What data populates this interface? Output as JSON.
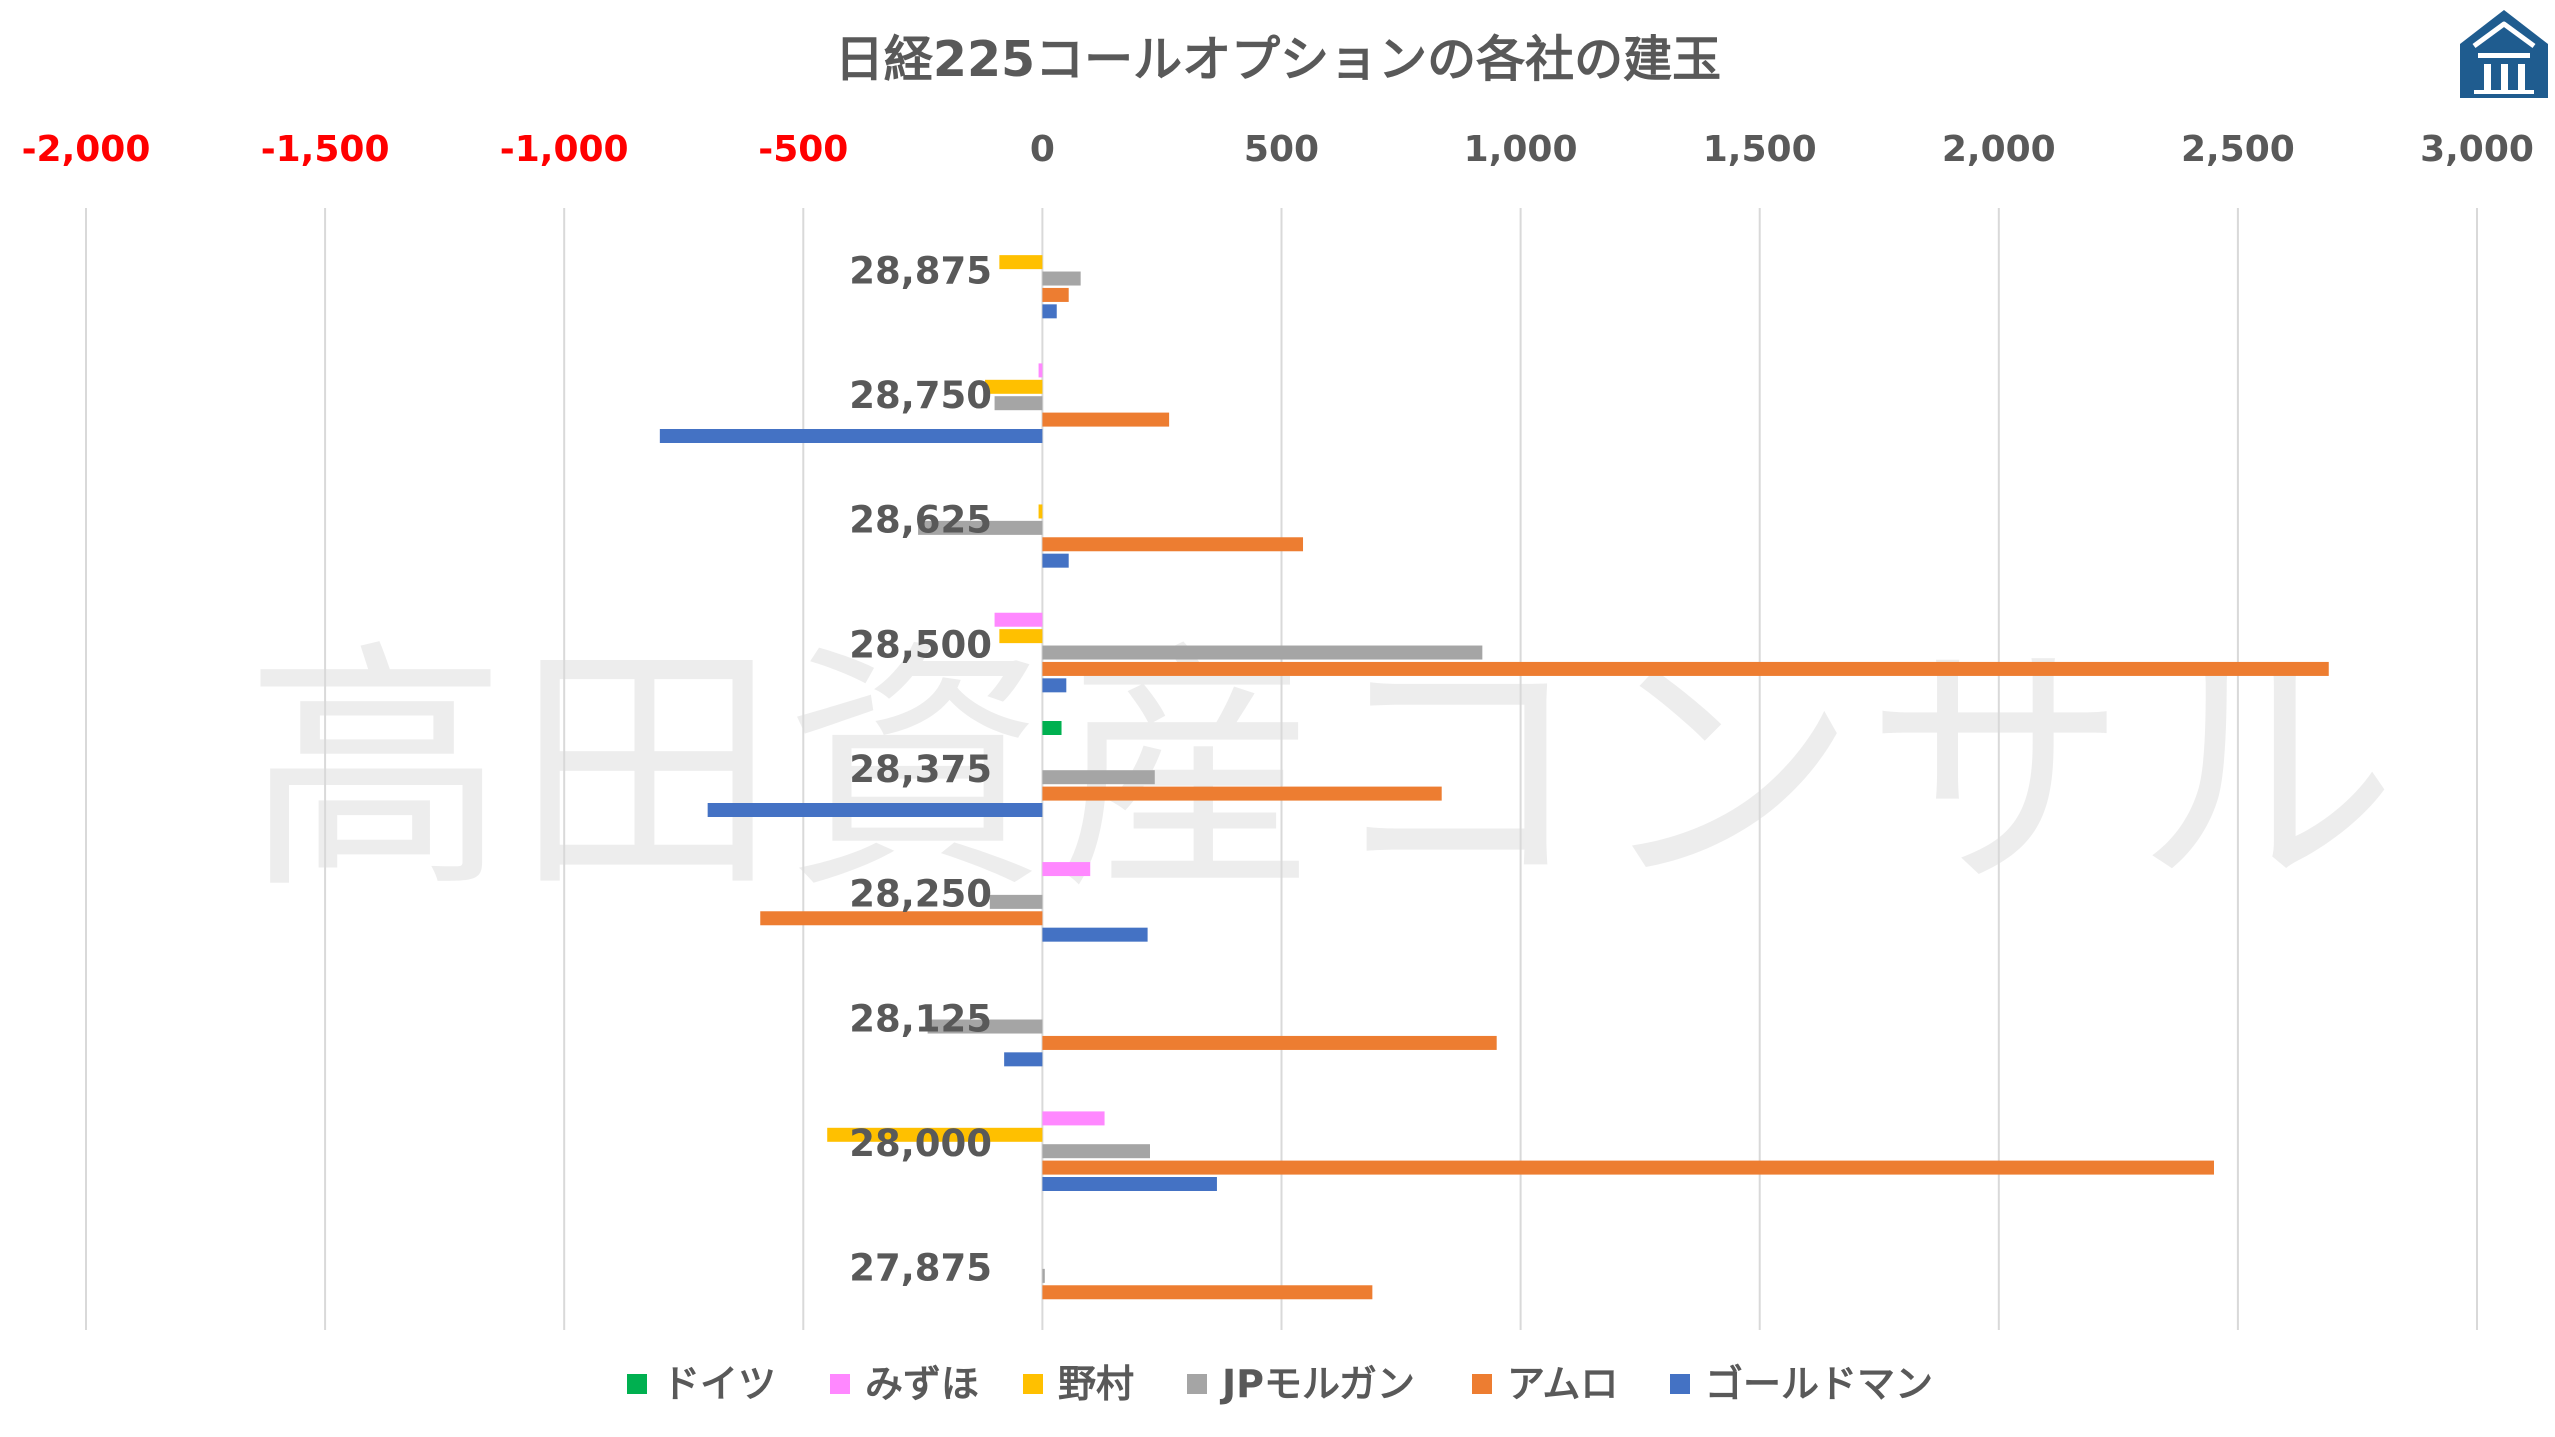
{
  "chart_data": {
    "type": "bar",
    "orientation": "horizontal",
    "title": "日経225コールオプションの各社の建玉",
    "xlim": [
      -2000,
      3000
    ],
    "x_ticks": [
      {
        "value": -2000,
        "label": "-2,000"
      },
      {
        "value": -1500,
        "label": "-1,500"
      },
      {
        "value": -1000,
        "label": "-1,000"
      },
      {
        "value": -500,
        "label": "-500"
      },
      {
        "value": 0,
        "label": "0"
      },
      {
        "value": 500,
        "label": "500"
      },
      {
        "value": 1000,
        "label": "1,000"
      },
      {
        "value": 1500,
        "label": "1,500"
      },
      {
        "value": 2000,
        "label": "2,000"
      },
      {
        "value": 2500,
        "label": "2,500"
      },
      {
        "value": 3000,
        "label": "3,000"
      }
    ],
    "x_axis_position": "top",
    "negative_tick_color": "#ff0000",
    "positive_tick_color": "#595959",
    "grid": true,
    "legend_position": "bottom",
    "categories": [
      "28,875",
      "28,750",
      "28,625",
      "28,500",
      "28,375",
      "28,250",
      "28,125",
      "28,000",
      "27,875"
    ],
    "series": [
      {
        "name": "ドイツ",
        "color": "#00b050",
        "values": [
          0,
          0,
          0,
          0,
          40,
          0,
          0,
          0,
          0
        ]
      },
      {
        "name": "みずほ",
        "color": "#ff88ff",
        "values": [
          0,
          -8,
          0,
          -100,
          0,
          100,
          0,
          130,
          0
        ]
      },
      {
        "name": "野村",
        "color": "#ffc000",
        "values": [
          -90,
          -120,
          -8,
          -90,
          0,
          0,
          0,
          -450,
          0
        ]
      },
      {
        "name": "JPモルガン",
        "color": "#a5a5a5",
        "values": [
          80,
          -100,
          -260,
          920,
          235,
          -110,
          -240,
          225,
          5
        ]
      },
      {
        "name": "アムロ",
        "color": "#ed7d31",
        "values": [
          55,
          265,
          545,
          2690,
          835,
          -590,
          950,
          2450,
          690
        ]
      },
      {
        "name": "ゴールドマン",
        "color": "#4472c4",
        "values": [
          30,
          -800,
          55,
          50,
          -700,
          220,
          -80,
          365,
          0
        ]
      }
    ]
  },
  "watermark": "高田資産コンサル",
  "logo": {
    "icon": "house-logo-icon",
    "color": "#1f5c8f"
  }
}
